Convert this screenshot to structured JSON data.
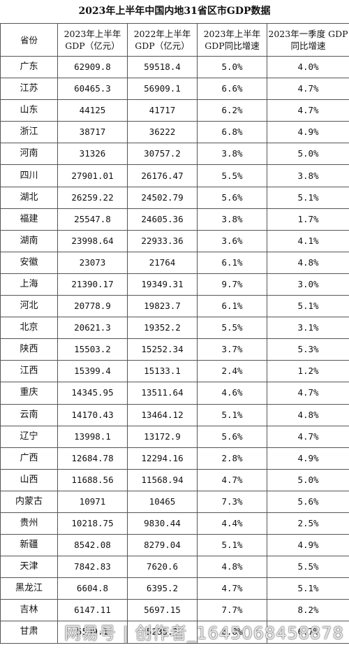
{
  "title": "2023年上半年中国内地31省区市GDP数据",
  "headers": [
    "省份",
    "2023年上半年 GDP（亿元）",
    "2022年上半年 GDP（亿元）",
    "2023年上半年 GDP同比增速",
    "2023年一季度 GDP同比增速"
  ],
  "rows": [
    [
      "广东",
      "62909.8",
      "59518.4",
      "5.0%",
      "4.0%"
    ],
    [
      "江苏",
      "60465.3",
      "56909.1",
      "6.6%",
      "4.7%"
    ],
    [
      "山东",
      "44125",
      "41717",
      "6.2%",
      "4.7%"
    ],
    [
      "浙江",
      "38717",
      "36222",
      "6.8%",
      "4.9%"
    ],
    [
      "河南",
      "31326",
      "30757.2",
      "3.8%",
      "5.0%"
    ],
    [
      "四川",
      "27901.01",
      "26176.47",
      "5.5%",
      "3.8%"
    ],
    [
      "湖北",
      "26259.22",
      "24502.79",
      "5.6%",
      "5.1%"
    ],
    [
      "福建",
      "25547.8",
      "24605.36",
      "3.8%",
      "1.7%"
    ],
    [
      "湖南",
      "23998.64",
      "22933.36",
      "3.6%",
      "4.1%"
    ],
    [
      "安徽",
      "23073",
      "21764",
      "6.1%",
      "4.8%"
    ],
    [
      "上海",
      "21390.17",
      "19349.31",
      "9.7%",
      "3.0%"
    ],
    [
      "河北",
      "20778.9",
      "19823.7",
      "6.1%",
      "5.1%"
    ],
    [
      "北京",
      "20621.3",
      "19352.2",
      "5.5%",
      "3.1%"
    ],
    [
      "陕西",
      "15503.2",
      "15252.34",
      "3.7%",
      "5.3%"
    ],
    [
      "江西",
      "15399.4",
      "15133.1",
      "2.4%",
      "1.2%"
    ],
    [
      "重庆",
      "14345.95",
      "13511.64",
      "4.6%",
      "4.7%"
    ],
    [
      "云南",
      "14170.43",
      "13464.12",
      "5.1%",
      "4.8%"
    ],
    [
      "辽宁",
      "13998.1",
      "13172.9",
      "5.6%",
      "4.7%"
    ],
    [
      "广西",
      "12684.78",
      "12294.16",
      "2.8%",
      "4.9%"
    ],
    [
      "山西",
      "11688.56",
      "11568.94",
      "4.7%",
      "5.0%"
    ],
    [
      "内蒙古",
      "10971",
      "10465",
      "7.3%",
      "5.6%"
    ],
    [
      "贵州",
      "10218.75",
      "9830.44",
      "4.4%",
      "2.5%"
    ],
    [
      "新疆",
      "8542.08",
      "8279.04",
      "5.1%",
      "4.9%"
    ],
    [
      "天津",
      "7842.83",
      "7620.6",
      "4.8%",
      "5.5%"
    ],
    [
      "黑龙江",
      "6604.8",
      "6395.2",
      "4.7%",
      "5.1%"
    ],
    [
      "吉林",
      "6147.11",
      "5697.15",
      "7.7%",
      "8.2%"
    ],
    [
      "甘肃",
      "5539.1",
      "5235.3",
      "6.8%",
      "6.7%"
    ]
  ],
  "watermark": "网易号 | 创作者_1645068458878"
}
